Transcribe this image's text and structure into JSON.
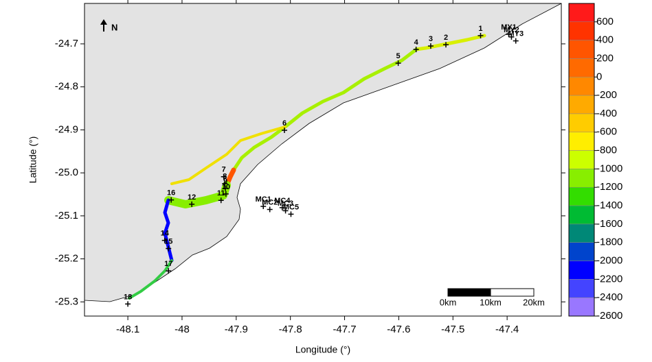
{
  "map": {
    "x_label": "Longitude (°)",
    "y_label": "Latitude (°)",
    "xlim": [
      -48.18,
      -47.3
    ],
    "ylim": [
      -25.333,
      -24.606
    ],
    "xticks": [
      -48.1,
      -48,
      -47.9,
      -47.8,
      -47.7,
      -47.6,
      -47.5,
      -47.4
    ],
    "yticks": [
      -24.7,
      -24.8,
      -24.9,
      {
        "value": -25,
        "label": "-25.0"
      },
      -25.1,
      -25.2,
      -25.3
    ],
    "north_label": "N",
    "scale_bar": {
      "labels": [
        "0km",
        "10km",
        "20km"
      ]
    },
    "colorbar": {
      "clim": [
        -2600,
        800
      ],
      "ticks": [
        600,
        400,
        200,
        0,
        -200,
        -400,
        -600,
        -800,
        -1000,
        -1200,
        -1400,
        -1600,
        -1800,
        -2000,
        -2200,
        -2400,
        -2600
      ],
      "colors": [
        "#ff1a1a",
        "#ff3300",
        "#ff5500",
        "#ff6a00",
        "#ff8800",
        "#ffaa00",
        "#ffcc00",
        "#ffee00",
        "#ccff00",
        "#88ee00",
        "#33dd00",
        "#00bb33",
        "#008877",
        "#0044cc",
        "#0000ff",
        "#4444ff",
        "#9977ff"
      ]
    },
    "stations": [
      {
        "label": "1",
        "lon": -47.449,
        "lat": -24.681
      },
      {
        "label": "2",
        "lon": -47.513,
        "lat": -24.702
      },
      {
        "label": "3",
        "lon": -47.541,
        "lat": -24.705
      },
      {
        "label": "4",
        "lon": -47.568,
        "lat": -24.713
      },
      {
        "label": "5",
        "lon": -47.601,
        "lat": -24.745
      },
      {
        "label": "6",
        "lon": -47.811,
        "lat": -24.901
      },
      {
        "label": "7",
        "lon": -47.923,
        "lat": -25.009
      },
      {
        "label": "8",
        "lon": -47.921,
        "lat": -25.025
      },
      {
        "label": "9",
        "lon": -47.92,
        "lat": -25.036
      },
      {
        "label": "10",
        "lon": -47.919,
        "lat": -25.049
      },
      {
        "label": "11",
        "lon": -47.928,
        "lat": -25.064
      },
      {
        "label": "12",
        "lon": -47.982,
        "lat": -25.073
      },
      {
        "label": "14",
        "lon": -48.032,
        "lat": -25.157
      },
      {
        "label": "15",
        "lon": -48.025,
        "lat": -25.176
      },
      {
        "label": "16",
        "lon": -48.02,
        "lat": -25.063
      },
      {
        "label": "17",
        "lon": -48.025,
        "lat": -25.228
      },
      {
        "label": "18",
        "lon": -48.1,
        "lat": -25.305
      },
      {
        "label": "MY1",
        "lon": -47.397,
        "lat": -24.678
      },
      {
        "label": "MY2",
        "lon": -47.392,
        "lat": -24.684
      },
      {
        "label": "MY3",
        "lon": -47.384,
        "lat": -24.693
      },
      {
        "label": "MC1",
        "lon": -47.85,
        "lat": -25.078
      },
      {
        "label": "MC2",
        "lon": -47.838,
        "lat": -25.085
      },
      {
        "label": "MC3",
        "lon": -47.809,
        "lat": -25.088
      },
      {
        "label": "MC4",
        "lon": -47.815,
        "lat": -25.081
      },
      {
        "label": "MC5",
        "lon": -47.799,
        "lat": -25.096
      }
    ]
  }
}
